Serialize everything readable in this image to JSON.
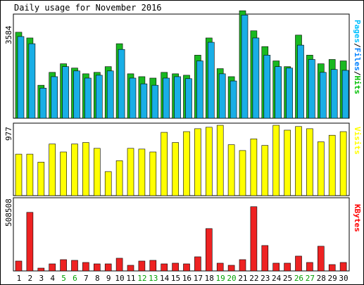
{
  "chart_data": [
    {
      "type": "bar",
      "title": "Daily usage for November 2016",
      "ylabel_max": "3584",
      "ylim": [
        0,
        3584
      ],
      "categories": [
        "1",
        "2",
        "3",
        "4",
        "5",
        "6",
        "7",
        "8",
        "9",
        "10",
        "11",
        "12",
        "13",
        "14",
        "15",
        "16",
        "17",
        "18",
        "19",
        "20",
        "21",
        "22",
        "23",
        "24",
        "25",
        "26",
        "27",
        "28",
        "29",
        "30"
      ],
      "weekend_days": [
        "5",
        "6",
        "12",
        "13",
        "19",
        "20",
        "26",
        "27"
      ],
      "side_label_parts": [
        {
          "text": "Pages",
          "color": "#00c0ff"
        },
        {
          "text": "/",
          "color": "#000000"
        },
        {
          "text": "Files",
          "color": "#0080ff"
        },
        {
          "text": "/",
          "color": "#000000"
        },
        {
          "text": "Hits",
          "color": "#00c000"
        }
      ],
      "series": [
        {
          "name": "Hits",
          "color": "#19b820",
          "values": [
            3000,
            2800,
            1150,
            1600,
            1900,
            1750,
            1550,
            1600,
            1800,
            2600,
            1550,
            1450,
            1400,
            1600,
            1550,
            1500,
            2200,
            2800,
            1730,
            1450,
            3750,
            3050,
            2500,
            2000,
            1800,
            2900,
            2200,
            1900,
            2050,
            2000
          ]
        },
        {
          "name": "Files",
          "color": "#19aee6",
          "values": [
            2850,
            2600,
            1050,
            1450,
            1800,
            1650,
            1400,
            1500,
            1650,
            2400,
            1400,
            1200,
            1150,
            1400,
            1450,
            1380,
            2000,
            2650,
            1550,
            1300,
            3600,
            2800,
            2200,
            1800,
            1750,
            2550,
            2050,
            1600,
            1700,
            1670
          ]
        }
      ]
    },
    {
      "type": "bar",
      "ylabel_max": "977",
      "ylim": [
        0,
        977
      ],
      "side_label": "Visits",
      "side_label_color": "#ffff00",
      "series": [
        {
          "name": "Visits",
          "color": "#ffff00",
          "values": [
            570,
            570,
            460,
            710,
            600,
            710,
            730,
            650,
            330,
            480,
            650,
            640,
            600,
            870,
            730,
            880,
            920,
            940,
            967,
            700,
            620,
            780,
            690,
            967,
            900,
            950,
            920,
            740,
            830,
            880
          ]
        }
      ]
    },
    {
      "type": "bar",
      "ylabel_max": "508508",
      "ylim": [
        0,
        508508
      ],
      "side_label": "KBytes",
      "side_label_color": "#ff0000",
      "series": [
        {
          "name": "KBytes",
          "color": "#ee2222",
          "values": [
            70000,
            415000,
            20000,
            50000,
            80000,
            75000,
            60000,
            50000,
            50000,
            90000,
            40000,
            70000,
            75000,
            50000,
            55000,
            50000,
            100000,
            300000,
            55000,
            40000,
            80000,
            455000,
            180000,
            55000,
            55000,
            105000,
            60000,
            175000,
            45000,
            60000
          ]
        }
      ]
    }
  ]
}
